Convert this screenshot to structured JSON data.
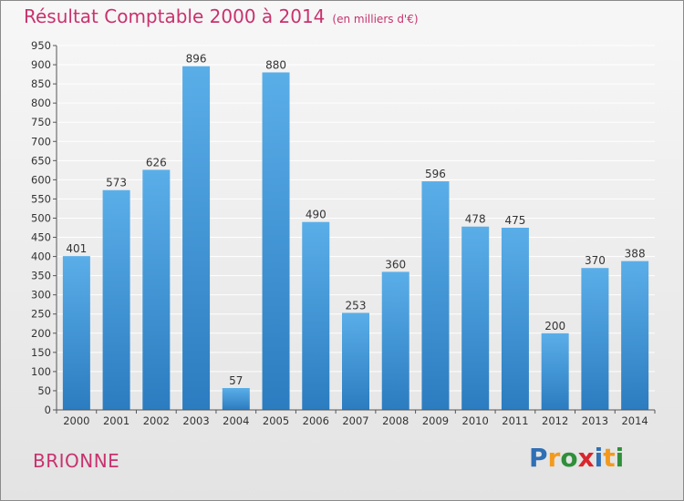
{
  "chart_data": {
    "type": "bar",
    "title": "Résultat Comptable 2000 à 2014",
    "subtitle": "(en milliers d'€)",
    "categories": [
      "2000",
      "2001",
      "2002",
      "2003",
      "2004",
      "2005",
      "2006",
      "2007",
      "2008",
      "2009",
      "2010",
      "2011",
      "2012",
      "2013",
      "2014"
    ],
    "values": [
      401,
      573,
      626,
      896,
      57,
      880,
      490,
      253,
      360,
      596,
      478,
      475,
      200,
      370,
      388
    ],
    "ylim": [
      0,
      950
    ],
    "ytick_step": 50,
    "xlabel": "",
    "ylabel": "",
    "grid": true
  },
  "footer": {
    "commune": "BRIONNE",
    "logo_letters": [
      {
        "ch": "P",
        "color": "#2f6fb5"
      },
      {
        "ch": "r",
        "color": "#f39a1e"
      },
      {
        "ch": "o",
        "color": "#2f8f3a"
      },
      {
        "ch": "x",
        "color": "#d8262e"
      },
      {
        "ch": "i",
        "color": "#2f6fb5"
      },
      {
        "ch": "t",
        "color": "#f39a1e"
      },
      {
        "ch": "i",
        "color": "#2f8f3a"
      }
    ]
  },
  "colors": {
    "bar_top": "#5aaee8",
    "bar_bottom": "#2b7cc0",
    "grid": "#ffffff",
    "title": "#c8326e"
  }
}
